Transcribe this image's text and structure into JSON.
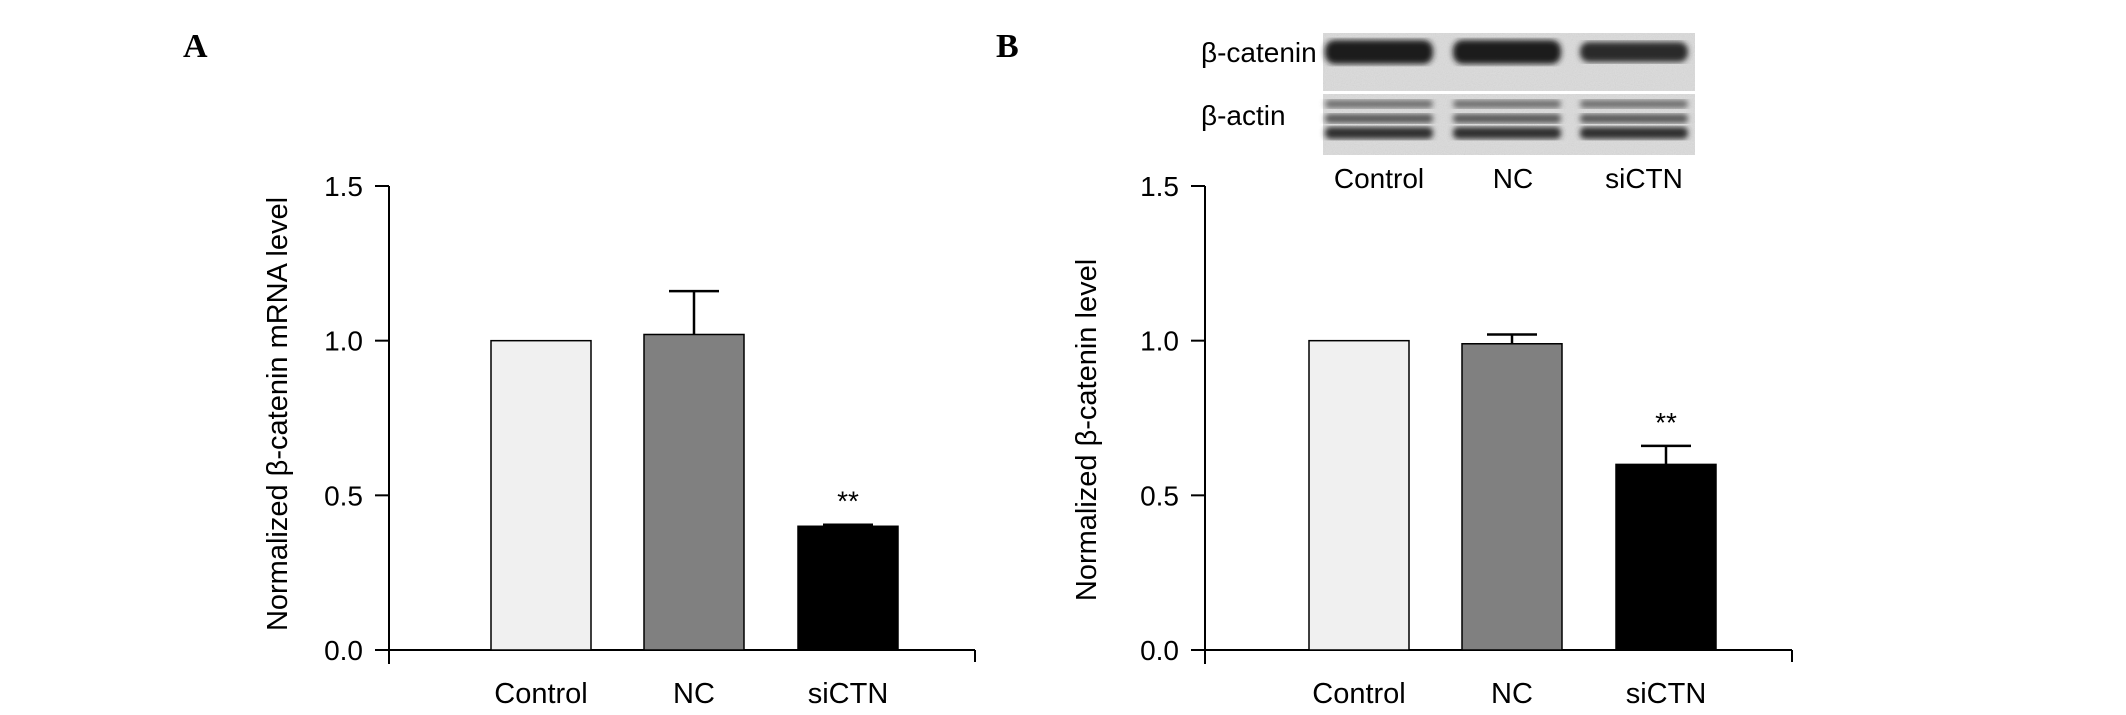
{
  "panels": [
    {
      "letter": "A",
      "chart_data": {
        "type": "bar",
        "categories": [
          "Control",
          "NC",
          "siCTN"
        ],
        "values": [
          1.0,
          1.02,
          0.4
        ],
        "error": [
          0,
          0.14,
          0.005
        ],
        "annotations": [
          "",
          "",
          "**"
        ],
        "colors": [
          "#f0f0f0",
          "#808080",
          "#000000"
        ],
        "ylabel": "Normalized β-catenin mRNA level",
        "ylim": [
          0,
          1.5
        ],
        "yticks": [
          0.0,
          0.5,
          1.0,
          1.5
        ],
        "ytick_labels": [
          "0.0",
          "0.5",
          "1.0",
          "1.5"
        ],
        "grid": false
      }
    },
    {
      "letter": "B",
      "chart_data": {
        "type": "bar",
        "categories": [
          "Control",
          "NC",
          "siCTN"
        ],
        "values": [
          1.0,
          0.99,
          0.6
        ],
        "error": [
          0,
          0.03,
          0.06
        ],
        "annotations": [
          "",
          "",
          "**"
        ],
        "colors": [
          "#f0f0f0",
          "#808080",
          "#000000"
        ],
        "ylabel": "Normalized β-catenin  level",
        "ylim": [
          0,
          1.5
        ],
        "yticks": [
          0.0,
          0.5,
          1.0,
          1.5
        ],
        "ytick_labels": [
          "0.0",
          "0.5",
          "1.0",
          "1.5"
        ],
        "grid": false
      }
    }
  ],
  "blot": {
    "row_labels": [
      "β-catenin",
      "β-actin"
    ],
    "lane_labels": [
      "Control",
      "NC",
      "siCTN"
    ]
  }
}
